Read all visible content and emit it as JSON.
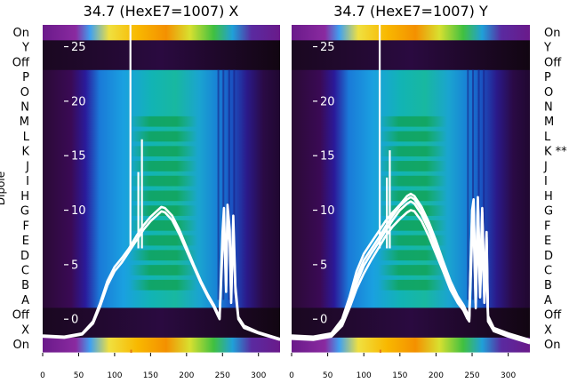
{
  "chart_data": [
    {
      "type": "heatmap",
      "title": "34.7 (HexE7=1007) X",
      "ylabel": "Dipole",
      "row_labels_bottom_to_top": [
        "On",
        "X",
        "Off",
        "A",
        "B",
        "C",
        "D",
        "E",
        "F",
        "G",
        "H",
        "I",
        "J",
        "K",
        "L",
        "M",
        "N",
        "O",
        "P",
        "Off",
        "Y",
        "On"
      ],
      "xlim": [
        0,
        330
      ],
      "x_ticks": [
        0,
        50,
        100,
        150,
        200,
        250,
        300
      ],
      "overlay_ylim": [
        -3,
        27
      ],
      "overlay_ticks": [
        0,
        5,
        10,
        15,
        20,
        25
      ],
      "overlay_series": [
        {
          "x": [
            0,
            30,
            55,
            70,
            80,
            90,
            100,
            110,
            120,
            130,
            140,
            150,
            160,
            165,
            170,
            180,
            190,
            200,
            210,
            220,
            230,
            238,
            243,
            246,
            250,
            252,
            255,
            257,
            260,
            262,
            265,
            268,
            272,
            280,
            300,
            330
          ],
          "y": [
            -1.5,
            -1.6,
            -1.3,
            -0.2,
            1.5,
            3.5,
            4.8,
            5.6,
            6.5,
            7.6,
            8.6,
            9.4,
            10,
            10.3,
            10.2,
            9.5,
            8.2,
            6.6,
            5,
            3.5,
            2.2,
            1.3,
            0.6,
            0.2,
            8,
            10.2,
            3,
            10.5,
            8.2,
            2,
            9.5,
            3,
            0.2,
            -0.6,
            -1.2,
            -1.8
          ]
        },
        {
          "x": [
            0,
            30,
            55,
            70,
            80,
            90,
            100,
            110,
            120,
            130,
            140,
            150,
            160,
            165,
            170,
            180,
            190,
            200,
            210,
            220,
            230,
            238,
            243,
            246,
            250,
            252,
            255,
            257,
            260,
            262,
            265,
            268,
            272,
            280,
            300,
            330
          ],
          "y": [
            -1.6,
            -1.7,
            -1.4,
            -0.4,
            1.2,
            3.1,
            4.4,
            5.2,
            6.2,
            7.2,
            8.2,
            9,
            9.6,
            9.9,
            9.8,
            9.1,
            7.8,
            6.3,
            4.8,
            3.3,
            2,
            1.1,
            0.4,
            0,
            6.5,
            9,
            2.5,
            9.5,
            7,
            1.5,
            8.5,
            2.5,
            0,
            -0.8,
            -1.3,
            -1.9
          ]
        }
      ],
      "overlay_spikes": [
        {
          "x": 122,
          "y_top": 27.5
        },
        {
          "x": 133,
          "y_top": 13.5
        },
        {
          "x": 138,
          "y_top": 16.5
        }
      ],
      "orange_tick": {
        "x": 123,
        "y_bottom": -3.8,
        "y_top": -2.8
      }
    },
    {
      "type": "heatmap",
      "title": "34.7 (HexE7=1007) Y",
      "row_labels_bottom_to_top": [
        "On",
        "X",
        "Off",
        "A",
        "B",
        "C",
        "D",
        "E",
        "F",
        "G",
        "H",
        "I",
        "J",
        "K **",
        "L",
        "M",
        "N",
        "O",
        "P",
        "Off",
        "Y",
        "On"
      ],
      "xlim": [
        0,
        330
      ],
      "x_ticks": [
        0,
        50,
        100,
        150,
        200,
        250,
        300
      ],
      "overlay_ylim": [
        -3,
        27
      ],
      "overlay_ticks": [
        0,
        5,
        10,
        15,
        20,
        25
      ],
      "overlay_series": [
        {
          "x": [
            0,
            30,
            55,
            70,
            80,
            90,
            100,
            110,
            120,
            130,
            140,
            150,
            160,
            165,
            170,
            180,
            190,
            200,
            210,
            220,
            230,
            238,
            243,
            246,
            250,
            252,
            255,
            258,
            261,
            264,
            267,
            270,
            272,
            280,
            300,
            330
          ],
          "y": [
            -1.6,
            -1.7,
            -1.4,
            -0.2,
            1.6,
            3.8,
            5.4,
            6.4,
            7.4,
            8.5,
            9.5,
            10.4,
            11,
            11.2,
            11,
            10,
            8.6,
            6.9,
            5.1,
            3.3,
            2,
            1.2,
            0.5,
            0.2,
            9.5,
            10.5,
            2,
            10.8,
            3,
            9.8,
            2.5,
            7.5,
            0.2,
            -0.9,
            -1.4,
            -2
          ]
        },
        {
          "x": [
            0,
            30,
            55,
            70,
            80,
            90,
            100,
            110,
            120,
            130,
            140,
            150,
            160,
            165,
            170,
            180,
            190,
            200,
            210,
            220,
            230,
            238,
            243,
            246,
            250,
            252,
            255,
            258,
            261,
            264,
            267,
            270,
            272,
            280,
            300,
            330
          ],
          "y": [
            -1.7,
            -1.8,
            -1.5,
            -0.4,
            1.3,
            3.3,
            4.9,
            6,
            7,
            8.1,
            9.1,
            10,
            10.6,
            10.8,
            10.6,
            9.6,
            8.2,
            6.5,
            4.8,
            3,
            1.8,
            1,
            0.3,
            0,
            8.5,
            9.5,
            1.5,
            9.8,
            2.5,
            8.8,
            2,
            6.5,
            0,
            -1,
            -1.5,
            -2.1
          ]
        },
        {
          "x": [
            0,
            30,
            55,
            70,
            80,
            90,
            100,
            110,
            120,
            130,
            140,
            150,
            160,
            165,
            170,
            180,
            190,
            200,
            210,
            220,
            230,
            238,
            243,
            246,
            250,
            252,
            255,
            258,
            261,
            264,
            267,
            270,
            272,
            280,
            300,
            330
          ],
          "y": [
            -1.8,
            -1.9,
            -1.6,
            -0.6,
            1,
            2.8,
            4.2,
            5.4,
            6.5,
            7.6,
            8.5,
            9.2,
            9.8,
            10,
            9.9,
            9,
            7.6,
            6,
            4.4,
            2.7,
            1.5,
            0.8,
            0.1,
            -0.2,
            7.5,
            8.5,
            1,
            9,
            2,
            7.8,
            1.5,
            5.5,
            -0.2,
            -1.1,
            -1.6,
            -2.2
          ]
        },
        {
          "x": [
            0,
            30,
            55,
            70,
            80,
            90,
            100,
            110,
            120,
            130,
            140,
            150,
            160,
            165,
            170,
            180,
            190,
            200,
            210,
            220,
            230,
            238,
            243,
            246,
            250,
            252,
            255,
            258,
            261,
            264,
            267,
            270,
            272,
            280,
            300,
            330
          ],
          "y": [
            -1.5,
            -1.6,
            -1.3,
            0,
            2,
            4.4,
            6,
            7,
            8,
            9,
            9.8,
            10.5,
            11.3,
            11.5,
            11.3,
            10.3,
            8.9,
            7.2,
            5.3,
            3.5,
            2.1,
            1.3,
            0.6,
            0.3,
            10,
            11,
            2.5,
            11.2,
            3.5,
            10.2,
            3,
            8,
            0.3,
            -0.8,
            -1.3,
            -1.9
          ]
        }
      ],
      "overlay_spikes": [
        {
          "x": 122,
          "y_top": 27.5
        },
        {
          "x": 132,
          "y_top": 13
        },
        {
          "x": 136,
          "y_top": 15.5
        }
      ],
      "orange_tick": {
        "x": 123,
        "y_bottom": -3.8,
        "y_top": -2.8
      }
    }
  ]
}
